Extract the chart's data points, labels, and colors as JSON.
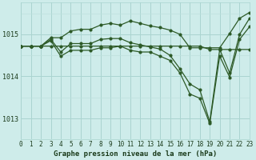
{
  "title": "Graphe pression niveau de la mer (hPa)",
  "background_color": "#ceecea",
  "grid_color_major": "#aad4d0",
  "grid_color_minor": "#bde0dc",
  "line_color": "#2d5a27",
  "hours": [
    0,
    1,
    2,
    3,
    4,
    5,
    6,
    7,
    8,
    9,
    10,
    11,
    12,
    13,
    14,
    15,
    16,
    17,
    18,
    19,
    20,
    21,
    22,
    23
  ],
  "series_main": [
    1014.72,
    1014.72,
    1014.72,
    1014.88,
    1014.58,
    1014.78,
    1014.78,
    1014.78,
    1014.88,
    1014.9,
    1014.9,
    1014.8,
    1014.75,
    1014.7,
    1014.65,
    1014.5,
    1014.18,
    1013.82,
    1013.68,
    1012.92,
    1014.64,
    1014.08,
    1015.0,
    1015.38
  ],
  "series_high": [
    1014.72,
    1014.72,
    1014.72,
    1014.92,
    1014.92,
    1015.08,
    1015.12,
    1015.12,
    1015.22,
    1015.26,
    1015.22,
    1015.32,
    1015.26,
    1015.2,
    1015.16,
    1015.1,
    1015.0,
    1014.68,
    1014.68,
    1014.68,
    1014.68,
    1015.02,
    1015.38,
    1015.52
  ],
  "series_low": [
    1014.72,
    1014.72,
    1014.72,
    1014.85,
    1014.48,
    1014.62,
    1014.62,
    1014.62,
    1014.68,
    1014.68,
    1014.72,
    1014.62,
    1014.58,
    1014.58,
    1014.48,
    1014.38,
    1014.08,
    1013.58,
    1013.48,
    1012.88,
    1014.48,
    1013.98,
    1014.88,
    1015.18
  ],
  "series_flat": [
    1014.72,
    1014.72,
    1014.72,
    1014.72,
    1014.72,
    1014.72,
    1014.72,
    1014.72,
    1014.72,
    1014.72,
    1014.72,
    1014.72,
    1014.72,
    1014.72,
    1014.72,
    1014.72,
    1014.72,
    1014.72,
    1014.72,
    1014.64,
    1014.64,
    1014.64,
    1014.64,
    1014.64
  ],
  "ylim": [
    1012.5,
    1015.75
  ],
  "yticks": [
    1013.0,
    1014.0,
    1015.0
  ],
  "xlim": [
    0,
    23
  ],
  "xticks": [
    0,
    1,
    2,
    3,
    4,
    5,
    6,
    7,
    8,
    9,
    10,
    11,
    12,
    13,
    14,
    15,
    16,
    17,
    18,
    19,
    20,
    21,
    22,
    23
  ],
  "xlabel_fontsize": 6.5,
  "tick_fontsize": 5.5,
  "ytick_fontsize": 6.0,
  "lw": 0.9,
  "ms": 2.0
}
